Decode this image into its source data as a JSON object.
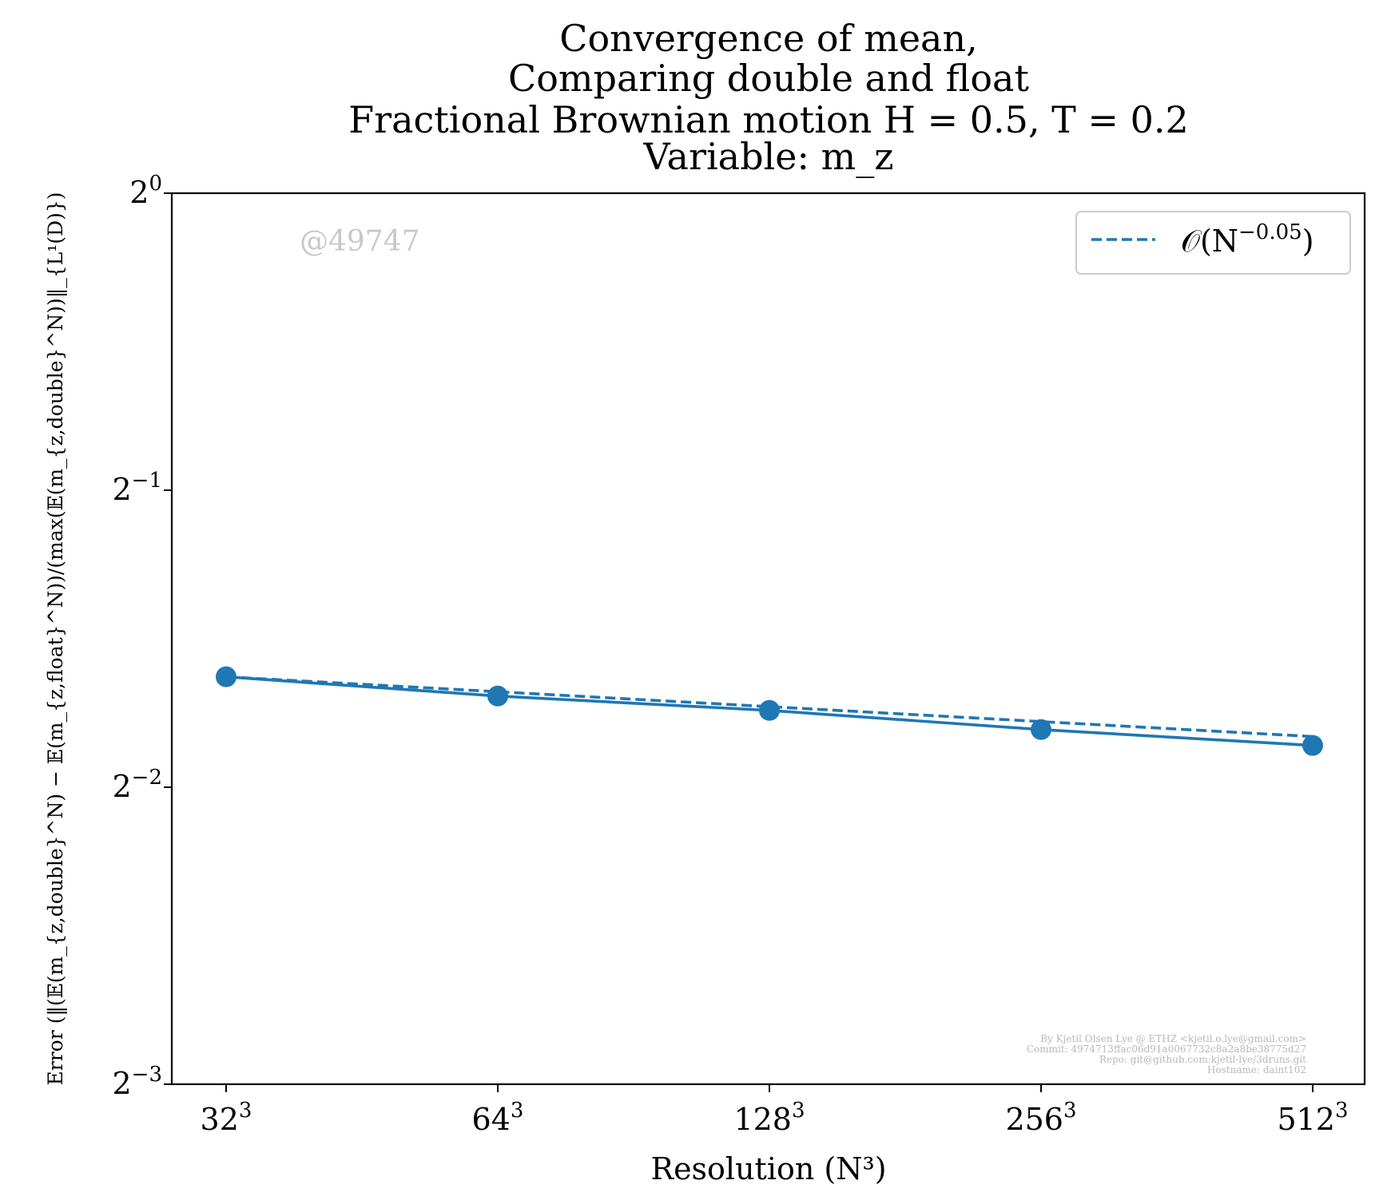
{
  "chart_data": {
    "type": "line",
    "title_lines": [
      "Convergence of mean,",
      "Comparing double and float",
      "Fractional Brownian motion H = 0.5, T = 0.2",
      "Variable: m_z"
    ],
    "xlabel": "Resolution (N³)",
    "ylabel": "Error (‖(𝔼(m_{z,double}^N) − 𝔼(m_{z,float}^N))/(max(𝔼(m_{z,double}^N))‖_{L¹(D)})",
    "x_scale": "log2",
    "y_scale": "log2",
    "x": [
      32,
      64,
      128,
      256,
      512
    ],
    "x_tick_labels": [
      {
        "base": "32",
        "exp": "3"
      },
      {
        "base": "64",
        "exp": "3"
      },
      {
        "base": "128",
        "exp": "3"
      },
      {
        "base": "256",
        "exp": "3"
      },
      {
        "base": "512",
        "exp": "3"
      }
    ],
    "y_ticks": [
      {
        "value": 0.125,
        "base": "2",
        "exp": "−3"
      },
      {
        "value": 0.25,
        "base": "2",
        "exp": "−2"
      },
      {
        "value": 0.5,
        "base": "2",
        "exp": "−1"
      },
      {
        "value": 1,
        "base": "2",
        "exp": "0"
      }
    ],
    "ylim": [
      0.125,
      1
    ],
    "series": [
      {
        "style": "solid-marker",
        "color": "#1f77b4",
        "values": [
          0.3235,
          0.3093,
          0.2991,
          0.286,
          0.2756
        ]
      },
      {
        "name": "𝒪(N^−0.05)",
        "style": "dashed",
        "color": "#1f77b4",
        "values": [
          0.3235,
          0.3124,
          0.3017,
          0.2914,
          0.2814
        ]
      }
    ],
    "legend": {
      "placement": "top-right",
      "label_prefix": "𝒪(N",
      "label_exp": "−0.05",
      "label_suffix": ")"
    },
    "grid": false,
    "watermark": "@49747",
    "credits": [
      "By Kjetil Olsen Lye @ ETHZ <kjetil.o.lye@gmail.com>",
      "Commit: 4974713ffac06d91a0067732c8a2a8be38775d27",
      "Repo: git@github.com:kjetil-lye/3druns.git",
      "Hostname: daint102"
    ]
  }
}
